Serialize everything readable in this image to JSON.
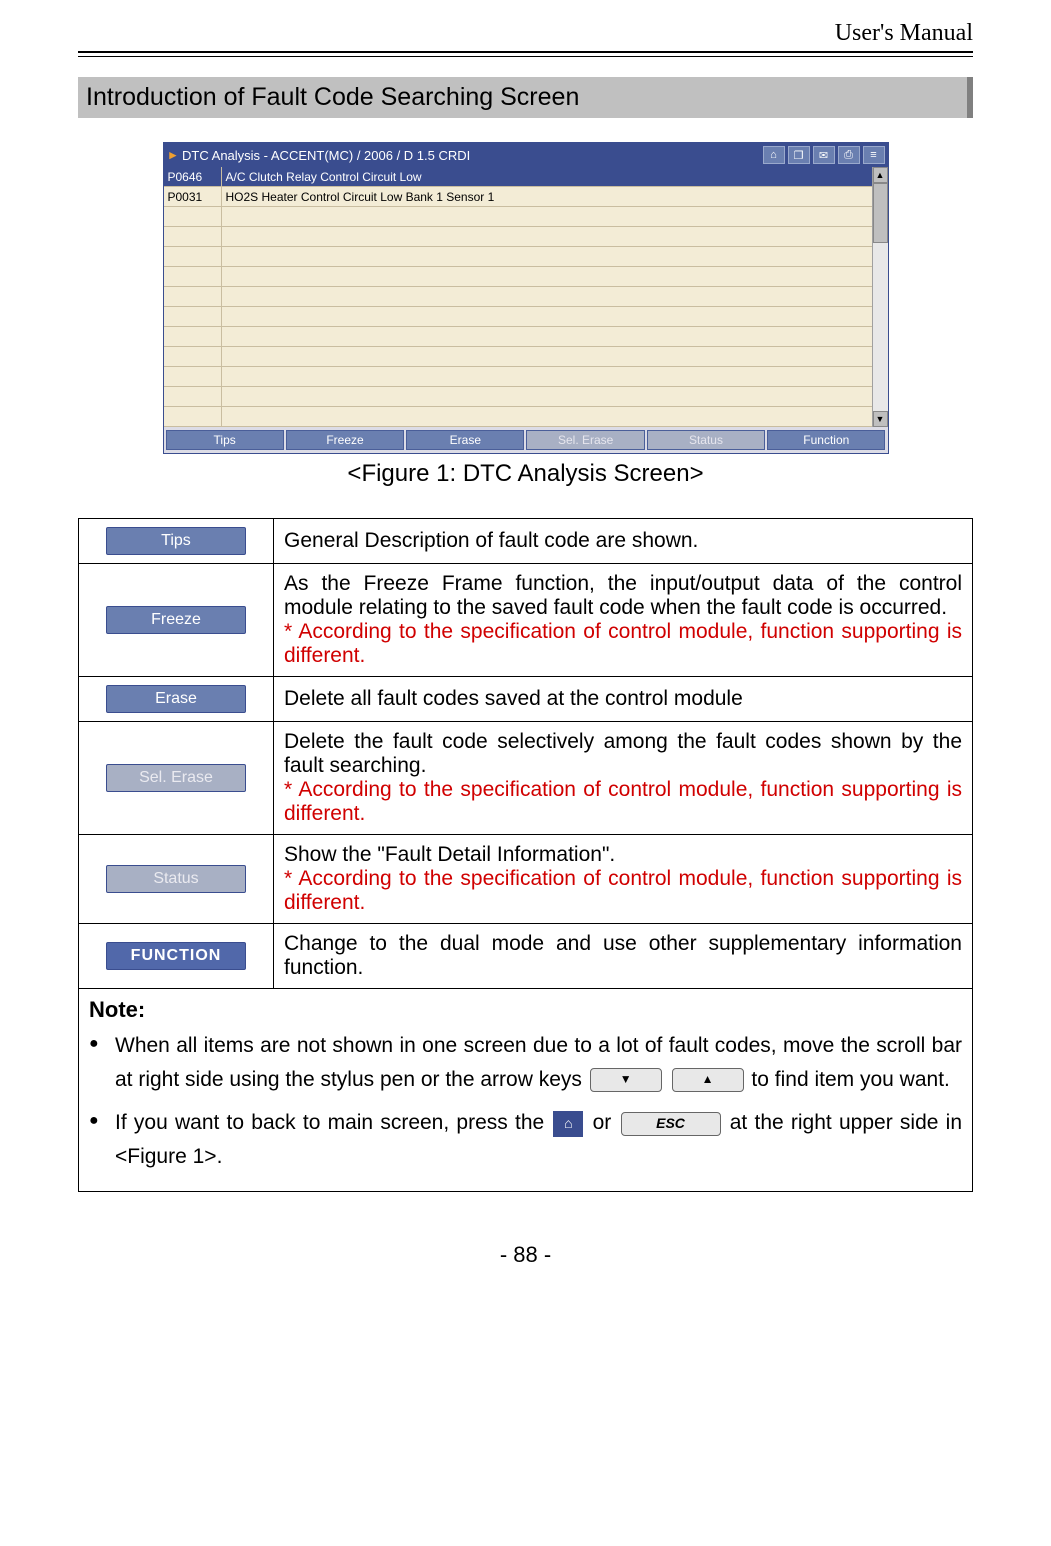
{
  "header": {
    "manual_title": "User's Manual"
  },
  "section": {
    "heading": "Introduction of Fault Code Searching Screen"
  },
  "dtc_window": {
    "title": "DTC Analysis - ACCENT(MC) / 2006 / D 1.5 CRDI",
    "rows": [
      {
        "code": "P0646",
        "desc": "A/C Clutch Relay Control Circuit Low",
        "selected": true
      },
      {
        "code": "P0031",
        "desc": "HO2S Heater Control Circuit Low Bank 1  Sensor 1",
        "selected": false
      }
    ],
    "empty_row_count": 11,
    "footer_buttons": [
      {
        "label": "Tips",
        "disabled": false
      },
      {
        "label": "Freeze",
        "disabled": false
      },
      {
        "label": "Erase",
        "disabled": false
      },
      {
        "label": "Sel. Erase",
        "disabled": true
      },
      {
        "label": "Status",
        "disabled": true
      },
      {
        "label": "Function",
        "disabled": false
      }
    ],
    "titlebar_icons": [
      "home-icon",
      "window-icon",
      "chat-icon",
      "print-icon",
      "menu-icon"
    ],
    "colors": {
      "titlebar_bg": "#3a4d8f",
      "row_bg": "#f3ecd6",
      "row_border": "#c9bda0",
      "btn_bg": "#6a7fb0",
      "btn_disabled_bg": "#a8b0c4"
    }
  },
  "figure_caption": "<Figure 1: DTC Analysis Screen>",
  "desc_table": {
    "rows": [
      {
        "btn": "Tips",
        "btn_style": "normal",
        "text": "General Description of fault code are shown.",
        "note": ""
      },
      {
        "btn": "Freeze",
        "btn_style": "normal",
        "text": "As the Freeze Frame function, the input/output data of the control module relating to the saved fault code when the fault code is occurred.",
        "note": "* According to the specification of control module, function supporting is different."
      },
      {
        "btn": "Erase",
        "btn_style": "normal",
        "text": "Delete all fault codes saved at the control module",
        "note": ""
      },
      {
        "btn": "Sel. Erase",
        "btn_style": "disabled",
        "text": "Delete the fault code selectively among the fault codes shown by the fault searching.",
        "note": "* According to the specification of control module, function supporting is different."
      },
      {
        "btn": "Status",
        "btn_style": "disabled",
        "text": "Show the \"Fault Detail Information\".",
        "note": "* According to the specification of control module, function supporting is different."
      },
      {
        "btn": "FUNCTION",
        "btn_style": "function",
        "text": "Change to the dual mode and use other supplementary information function.",
        "note": ""
      }
    ]
  },
  "notes": {
    "heading": "Note:",
    "bullet1_a": "When all items are not shown in one screen due to a lot of fault codes, move the scroll bar at right side using the stylus pen or the arrow keys ",
    "bullet1_b": " to find item you want.",
    "bullet2_a": "If you want to back to main screen, press the ",
    "bullet2_b": " or ",
    "bullet2_c": " at the right upper side in <Figure 1>.",
    "esc_label": "ESC"
  },
  "page_number": "- 88 -"
}
